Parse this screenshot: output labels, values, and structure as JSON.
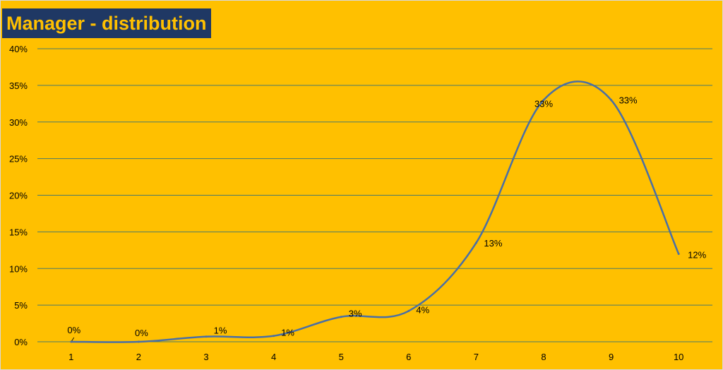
{
  "chart_data": {
    "type": "line",
    "title": "Manager - distribution",
    "xlabel": "",
    "ylabel": "",
    "x": [
      1,
      2,
      3,
      4,
      5,
      6,
      7,
      8,
      9,
      10
    ],
    "series": [
      {
        "values": [
          0,
          0,
          0.7,
          0.8,
          3.4,
          4.2,
          13.5,
          33,
          33,
          12
        ],
        "labels": [
          "0%",
          "0%",
          "1%",
          "1%",
          "3%",
          "4%",
          "13%",
          "33%",
          "33%",
          "12%"
        ]
      }
    ],
    "ylim": [
      0,
      40
    ],
    "yticks": [
      "0%",
      "5%",
      "10%",
      "15%",
      "20%",
      "25%",
      "30%",
      "35%",
      "40%"
    ],
    "xticks": [
      "1",
      "2",
      "3",
      "4",
      "5",
      "6",
      "7",
      "8",
      "9",
      "10"
    ],
    "grid": true,
    "smooth": true,
    "colors": {
      "background": "#ffc000",
      "line": "#4a6fa5",
      "grid": "#4a7a6a",
      "title_bg": "#1f3864",
      "title_text": "#ffc000"
    }
  }
}
